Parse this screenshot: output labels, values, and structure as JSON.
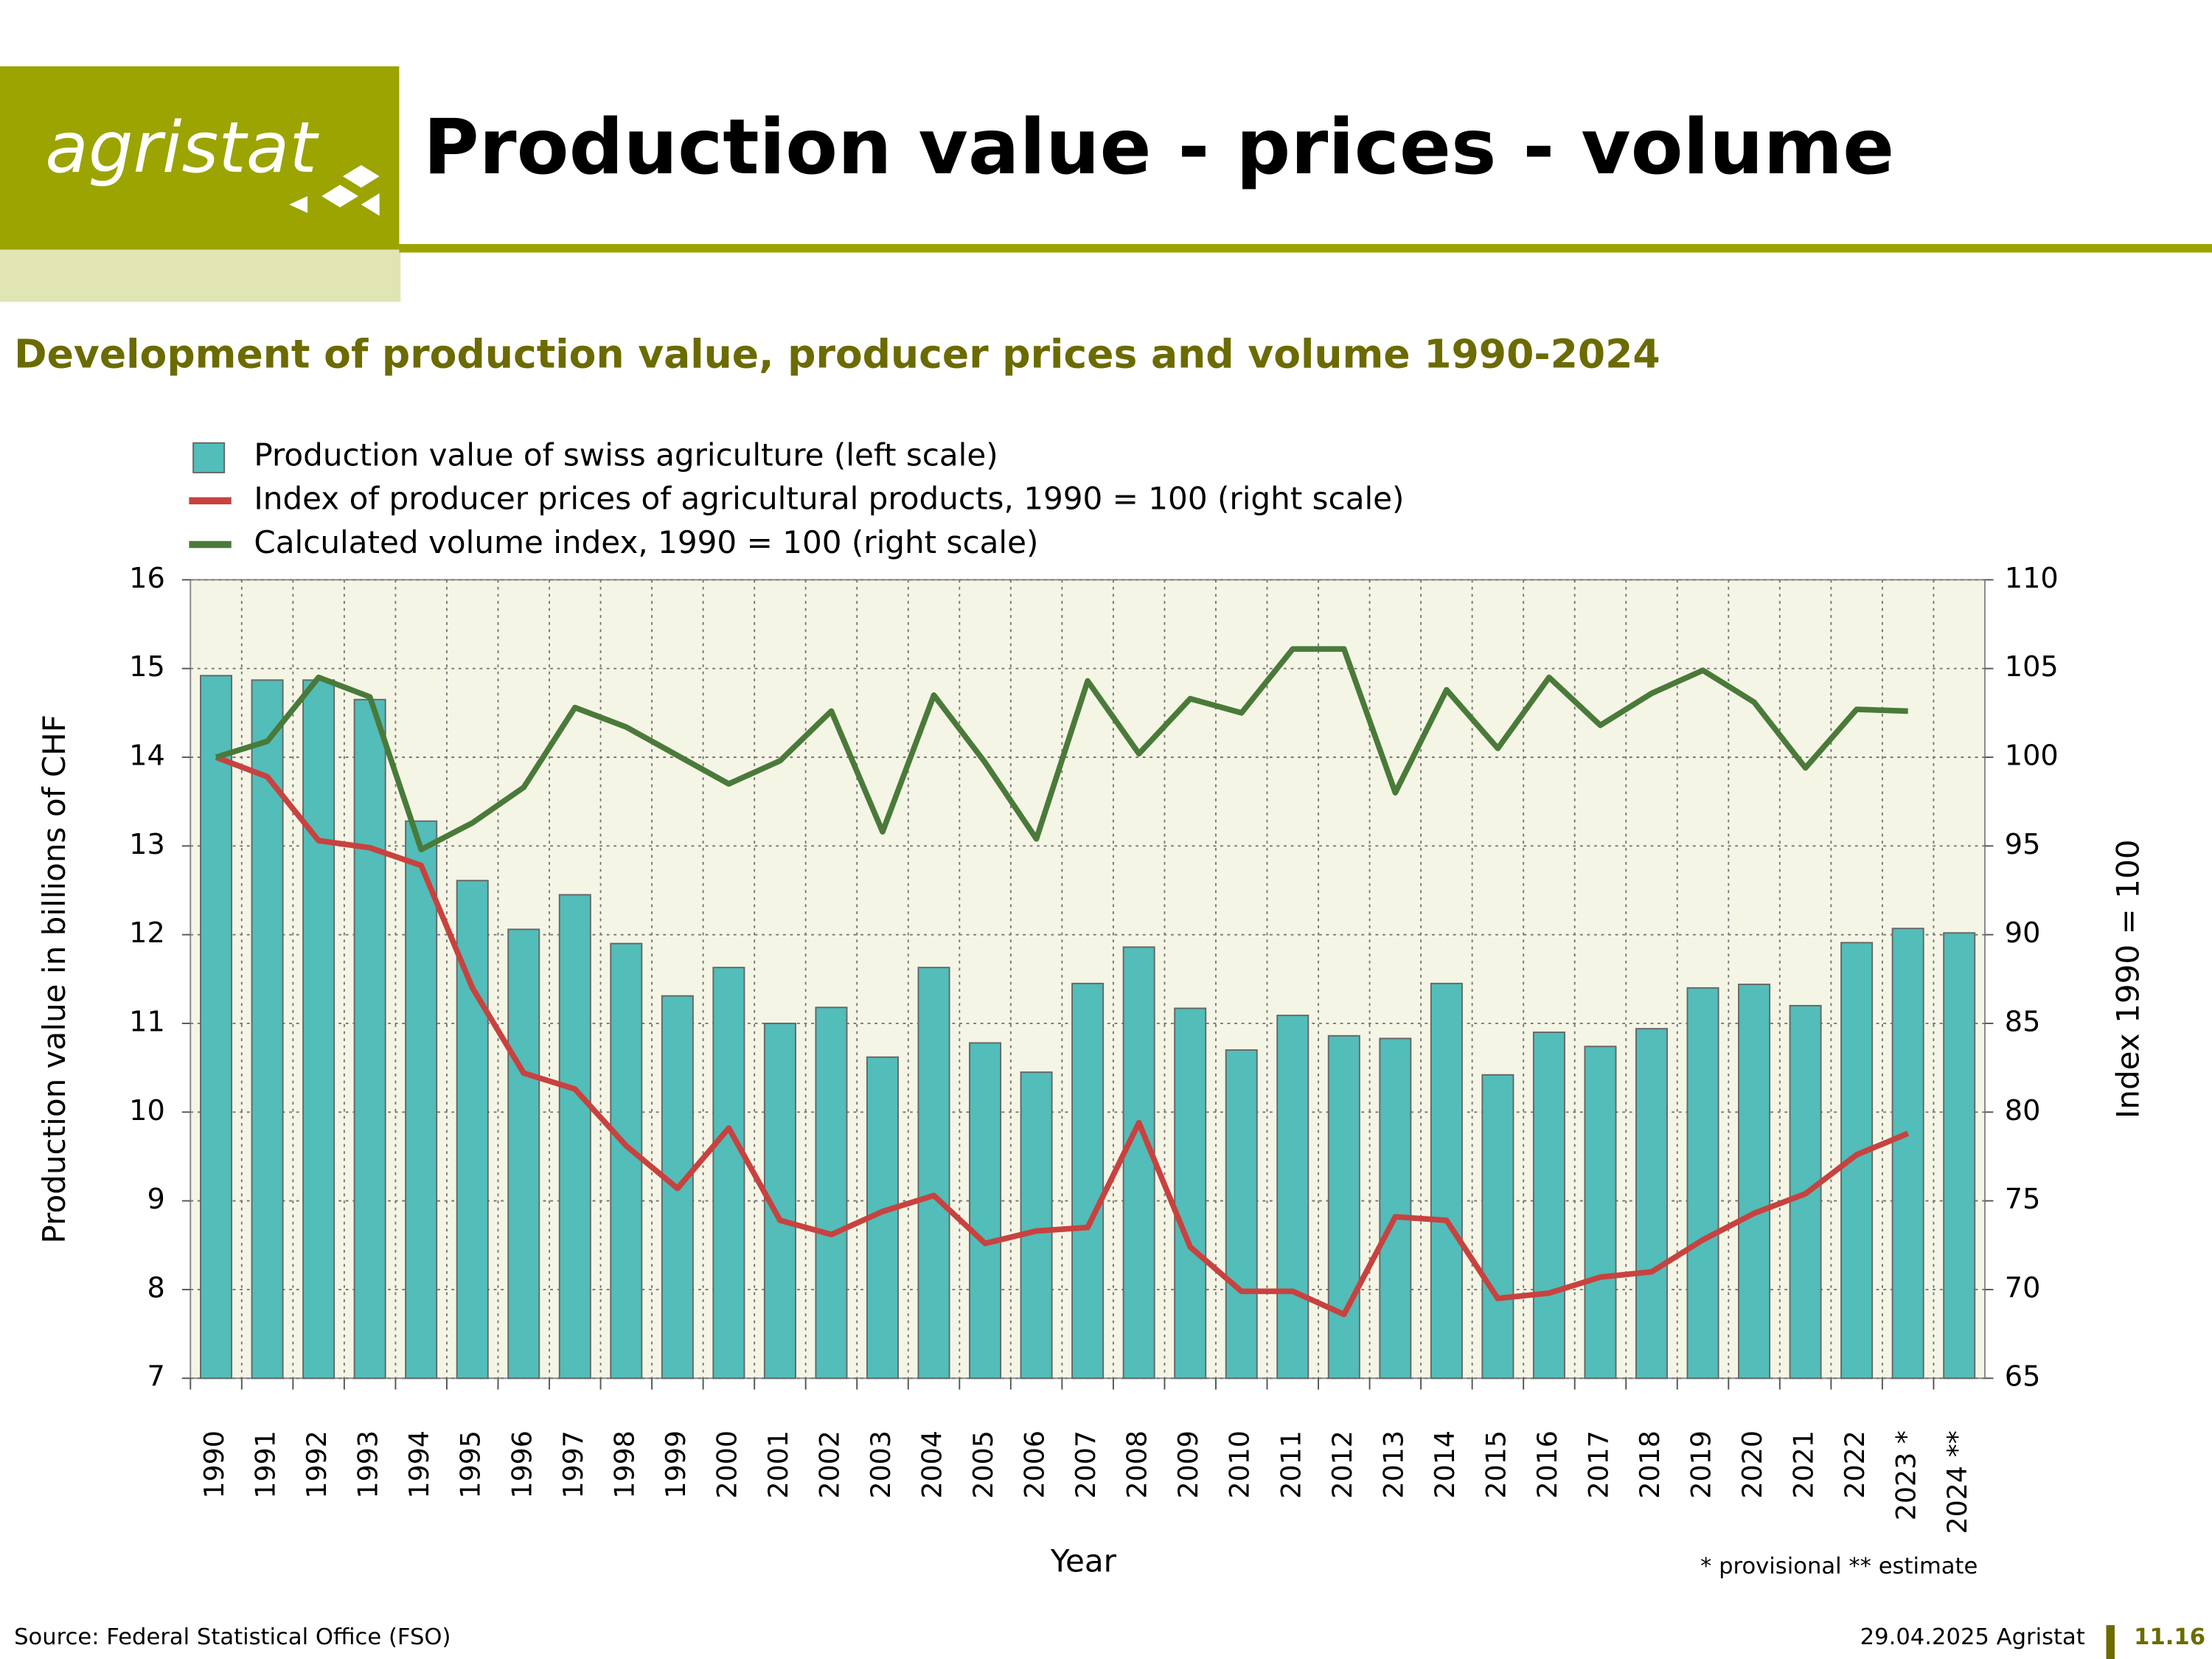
{
  "header": {
    "logo": "agristat",
    "title": "Production value - prices - volume"
  },
  "chart_data": {
    "type": "bar",
    "title": "Development of production value, producer prices and volume 1990-2024",
    "x_label": "Year",
    "y_label": "Production value in billions of CHF",
    "y2_label": "Index 1990 = 100",
    "note": "* provisional ** estimate",
    "categories": [
      "1990",
      "1991",
      "1992",
      "1993",
      "1994",
      "1995",
      "1996",
      "1997",
      "1998",
      "1999",
      "2000",
      "2001",
      "2002",
      "2003",
      "2004",
      "2005",
      "2006",
      "2007",
      "2008",
      "2009",
      "2010",
      "2011",
      "2012",
      "2013",
      "2014",
      "2015",
      "2016",
      "2017",
      "2018",
      "2019",
      "2020",
      "2021",
      "2022",
      "2023 *",
      "2024 **"
    ],
    "ylim": [
      7,
      16
    ],
    "yticks": [
      7,
      8,
      9,
      10,
      11,
      12,
      13,
      14,
      15,
      16
    ],
    "y2lim": [
      65,
      110
    ],
    "y2ticks": [
      65,
      70,
      75,
      80,
      85,
      90,
      95,
      100,
      105,
      110
    ],
    "grid": true,
    "series": [
      {
        "name": "Production value of swiss agriculture (left scale)",
        "type": "bar",
        "color": "#52bdb9",
        "values": [
          14.92,
          14.87,
          14.87,
          14.65,
          13.28,
          12.61,
          12.06,
          12.45,
          11.9,
          11.31,
          11.63,
          11.0,
          11.18,
          10.62,
          11.63,
          10.78,
          10.45,
          11.45,
          11.86,
          11.17,
          10.7,
          11.09,
          10.86,
          10.83,
          11.45,
          10.42,
          10.9,
          10.74,
          10.94,
          11.4,
          11.44,
          11.2,
          11.91,
          12.07,
          12.02
        ]
      },
      {
        "name": "Index of producer prices of agricultural products, 1990 = 100 (right scale)",
        "type": "line",
        "axis": "y2",
        "color": "#c8423f",
        "values": [
          100,
          98.9,
          95.3,
          94.9,
          93.9,
          87.0,
          82.2,
          81.3,
          78.1,
          75.7,
          79.1,
          73.9,
          73.1,
          74.4,
          75.3,
          72.6,
          73.3,
          73.5,
          79.4,
          72.4,
          69.9,
          69.9,
          68.6,
          74.1,
          73.9,
          69.5,
          69.8,
          70.7,
          71.0,
          72.8,
          74.3,
          75.4,
          77.6,
          78.8,
          null
        ]
      },
      {
        "name": "Calculated volume index, 1990 = 100 (right scale)",
        "type": "line",
        "axis": "y2",
        "color": "#4a7a3a",
        "values": [
          100,
          100.9,
          104.5,
          103.4,
          94.8,
          96.3,
          98.3,
          102.8,
          101.7,
          100.1,
          98.5,
          99.8,
          102.6,
          95.8,
          103.5,
          99.7,
          95.4,
          104.3,
          100.2,
          103.3,
          102.5,
          106.1,
          106.1,
          98.0,
          103.8,
          100.5,
          104.5,
          101.8,
          103.6,
          104.9,
          103.1,
          99.4,
          102.7,
          102.6,
          null
        ]
      }
    ]
  },
  "footer": {
    "source": "Source: Federal Statistical Office (FSO)",
    "date": "29.04.2025 Agristat",
    "page": "11.16"
  }
}
